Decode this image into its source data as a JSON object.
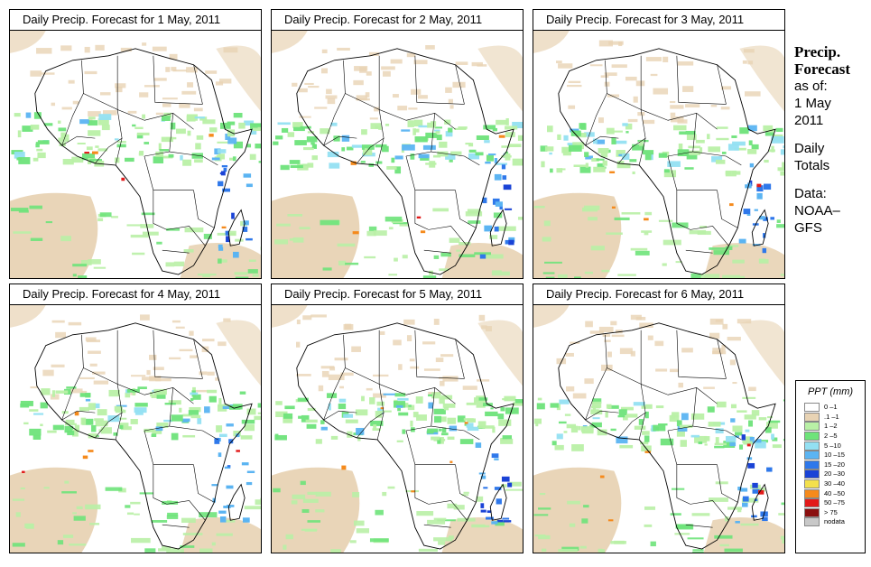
{
  "panels": [
    {
      "title": "Daily Precip. Forecast for  1 May, 2011"
    },
    {
      "title": "Daily Precip. Forecast for  2 May, 2011"
    },
    {
      "title": "Daily Precip. Forecast for  3 May, 2011"
    },
    {
      "title": "Daily Precip. Forecast for  4 May, 2011"
    },
    {
      "title": "Daily Precip. Forecast for  5 May, 2011"
    },
    {
      "title": "Daily Precip. Forecast for  6 May, 2011"
    }
  ],
  "info": {
    "heading_1": "Precip.",
    "heading_2": "Forecast",
    "as_of": "as of:",
    "date_1": "1 May",
    "date_2": "2011",
    "daily_1": "Daily",
    "daily_2": "Totals",
    "data_1": "Data:",
    "data_2": "NOAA–",
    "data_3": "GFS"
  },
  "legend": {
    "title": "PPT (mm)",
    "items": [
      {
        "label": "0 –1",
        "color": "#ffffff"
      },
      {
        "label": ".1 –1",
        "color": "#e8d3b4"
      },
      {
        "label": "1 –2",
        "color": "#b9f0a6"
      },
      {
        "label": "2 –5",
        "color": "#6ee37a"
      },
      {
        "label": "5 –10",
        "color": "#93e0f2"
      },
      {
        "label": "10 –15",
        "color": "#5bb4f2"
      },
      {
        "label": "15 –20",
        "color": "#2f78ea"
      },
      {
        "label": "20 –30",
        "color": "#1a43d6"
      },
      {
        "label": "30 –40",
        "color": "#f3e04c"
      },
      {
        "label": "40 –50",
        "color": "#f58a1c"
      },
      {
        "label": "50 –75",
        "color": "#e21a1a"
      },
      {
        "label": "> 75",
        "color": "#8a0f0f"
      },
      {
        "label": "nodata",
        "color": "#c8c8c8"
      }
    ]
  }
}
